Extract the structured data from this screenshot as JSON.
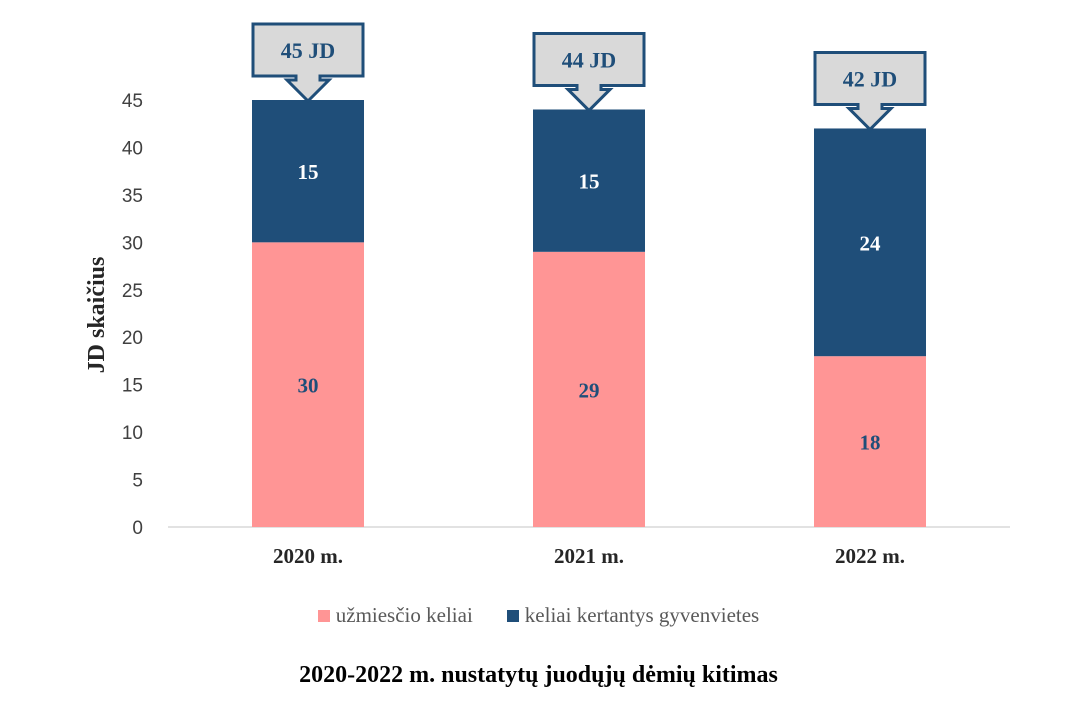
{
  "chart_data": {
    "type": "bar",
    "stacked": true,
    "title": "2020-2022 m. nustatytų juodųjų dėmių kitimas",
    "ylabel": "JD skaičius",
    "xlabel": "",
    "ylim": [
      0,
      45
    ],
    "yticks": [
      0,
      5,
      10,
      15,
      20,
      25,
      30,
      35,
      40,
      45
    ],
    "categories": [
      "2020 m.",
      "2021 m.",
      "2022 m."
    ],
    "series": [
      {
        "name": "užmiesčio keliai",
        "values": [
          30,
          29,
          18
        ],
        "color": "#ff9595"
      },
      {
        "name": "keliai kertantys gyvenvietes",
        "values": [
          15,
          15,
          24
        ],
        "color": "#1f4e79"
      }
    ],
    "totals_labels": [
      "45 JD",
      "44 JD",
      "42 JD"
    ],
    "legend_position": "bottom",
    "grid": false
  }
}
